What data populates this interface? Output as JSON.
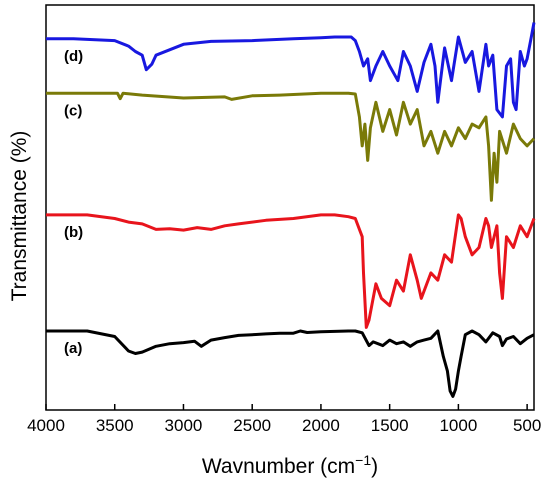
{
  "chart_data": {
    "type": "line",
    "xlabel": "Wavnumber (cm",
    "xlabel_sup": "−1",
    "xlabel_close": ")",
    "ylabel": "Transmittance (%)",
    "xlim": [
      4000,
      450
    ],
    "x_reversed": true,
    "xticks": [
      4000,
      3500,
      3000,
      2500,
      2000,
      1500,
      1000,
      500
    ],
    "xtick_labels": [
      "4000",
      "3500",
      "3000",
      "2500",
      "2000",
      "1500",
      "1000",
      "500"
    ],
    "ylim": [
      0,
      100
    ],
    "yticks_labeled": false,
    "grid": false,
    "legend": "none",
    "series": [
      {
        "name": "(a)",
        "color": "#000000",
        "x": [
          4000,
          3700,
          3500,
          3400,
          3350,
          3300,
          3200,
          3100,
          3000,
          2920,
          2870,
          2800,
          2700,
          2600,
          2500,
          2400,
          2300,
          2200,
          2150,
          2100,
          2000,
          1900,
          1800,
          1750,
          1700,
          1650,
          1620,
          1550,
          1500,
          1450,
          1400,
          1350,
          1300,
          1250,
          1200,
          1150,
          1110,
          1080,
          1060,
          1040,
          1020,
          1000,
          980,
          950,
          900,
          850,
          800,
          750,
          700,
          680,
          650,
          600,
          550,
          500,
          450
        ],
        "y": [
          19.0,
          19.0,
          17.5,
          13.5,
          12.8,
          13.2,
          14.8,
          15.5,
          15.8,
          16.2,
          14.8,
          16.5,
          17.2,
          17.8,
          18.0,
          18.2,
          18.4,
          18.4,
          19.0,
          18.6,
          18.8,
          18.9,
          19.0,
          19.0,
          18.5,
          15.0,
          16.0,
          15.0,
          16.5,
          15.5,
          16.0,
          14.8,
          16.0,
          16.5,
          17.0,
          19.0,
          12.0,
          8.0,
          2.5,
          1.0,
          3.0,
          8.0,
          12.0,
          18.0,
          19.0,
          18.0,
          16.0,
          18.5,
          17.5,
          15.0,
          16.8,
          17.5,
          15.5,
          17.0,
          18.0
        ]
      },
      {
        "name": "(b)",
        "color": "#e8141c",
        "x": [
          4000,
          3700,
          3500,
          3400,
          3300,
          3200,
          3100,
          3000,
          2900,
          2800,
          2700,
          2600,
          2400,
          2200,
          2000,
          1900,
          1800,
          1750,
          1700,
          1690,
          1670,
          1650,
          1600,
          1560,
          1500,
          1450,
          1400,
          1350,
          1300,
          1270,
          1200,
          1150,
          1100,
          1050,
          1000,
          980,
          950,
          900,
          850,
          800,
          780,
          760,
          720,
          700,
          680,
          650,
          600,
          550,
          500,
          450
        ],
        "y": [
          51.0,
          51.0,
          50.0,
          49.0,
          48.5,
          47.0,
          47.2,
          46.8,
          47.5,
          47.0,
          48.0,
          48.5,
          49.5,
          50.0,
          51.0,
          51.0,
          50.5,
          50.0,
          45.0,
          35.0,
          20.0,
          22.0,
          32.0,
          28.0,
          26.0,
          33.0,
          30.0,
          40.0,
          33.0,
          28.0,
          35.0,
          33.0,
          40.0,
          38.0,
          51.0,
          50.0,
          45.0,
          40.0,
          42.0,
          50.0,
          48.0,
          42.0,
          48.0,
          35.0,
          28.0,
          45.0,
          42.0,
          48.0,
          45.0,
          50.0
        ]
      },
      {
        "name": "(c)",
        "color": "#7a7a08",
        "x": [
          4000,
          3600,
          3480,
          3460,
          3440,
          3300,
          3000,
          2700,
          2650,
          2500,
          2300,
          2000,
          1800,
          1750,
          1720,
          1700,
          1680,
          1660,
          1640,
          1600,
          1550,
          1500,
          1450,
          1400,
          1350,
          1300,
          1250,
          1200,
          1150,
          1100,
          1050,
          1000,
          950,
          900,
          850,
          800,
          780,
          760,
          740,
          720,
          700,
          650,
          600,
          550,
          500,
          450
        ],
        "y": [
          84.5,
          84.5,
          84.5,
          83.0,
          84.5,
          84.0,
          83.2,
          83.5,
          82.8,
          83.8,
          84.0,
          84.5,
          84.5,
          84.3,
          78.0,
          70.0,
          76.0,
          66.0,
          75.0,
          82.0,
          74.0,
          80.0,
          73.0,
          82.0,
          76.0,
          80.0,
          70.0,
          74.0,
          68.0,
          74.0,
          70.0,
          75.0,
          72.0,
          76.0,
          75.0,
          78.0,
          70.0,
          55.0,
          68.0,
          60.0,
          74.0,
          68.0,
          76.0,
          72.0,
          70.0,
          72.0
        ]
      },
      {
        "name": "(d)",
        "color": "#1818e0",
        "x": [
          4000,
          3800,
          3500,
          3400,
          3350,
          3300,
          3270,
          3230,
          3200,
          3000,
          2800,
          2500,
          2200,
          2000,
          1900,
          1780,
          1750,
          1720,
          1690,
          1660,
          1640,
          1600,
          1550,
          1500,
          1470,
          1440,
          1400,
          1350,
          1300,
          1250,
          1200,
          1170,
          1150,
          1130,
          1100,
          1050,
          1000,
          950,
          900,
          850,
          800,
          780,
          750,
          720,
          680,
          650,
          620,
          600,
          580,
          550,
          520,
          500,
          470,
          450
        ],
        "y": [
          99.5,
          99.5,
          99.0,
          97.5,
          96.0,
          95.0,
          91.0,
          92.5,
          95.0,
          98.0,
          98.8,
          99.0,
          99.5,
          99.8,
          100.0,
          100.0,
          99.0,
          96.0,
          92.0,
          94.0,
          88.0,
          92.0,
          96.0,
          92.0,
          90.0,
          88.0,
          96.0,
          92.0,
          85.0,
          93.0,
          98.0,
          92.0,
          82.0,
          88.0,
          97.0,
          88.0,
          100.0,
          93.0,
          96.0,
          85.0,
          98.0,
          92.0,
          95.0,
          80.0,
          78.0,
          92.0,
          94.0,
          82.0,
          80.0,
          96.0,
          92.0,
          94.0,
          100.0,
          104.0
        ]
      }
    ]
  }
}
